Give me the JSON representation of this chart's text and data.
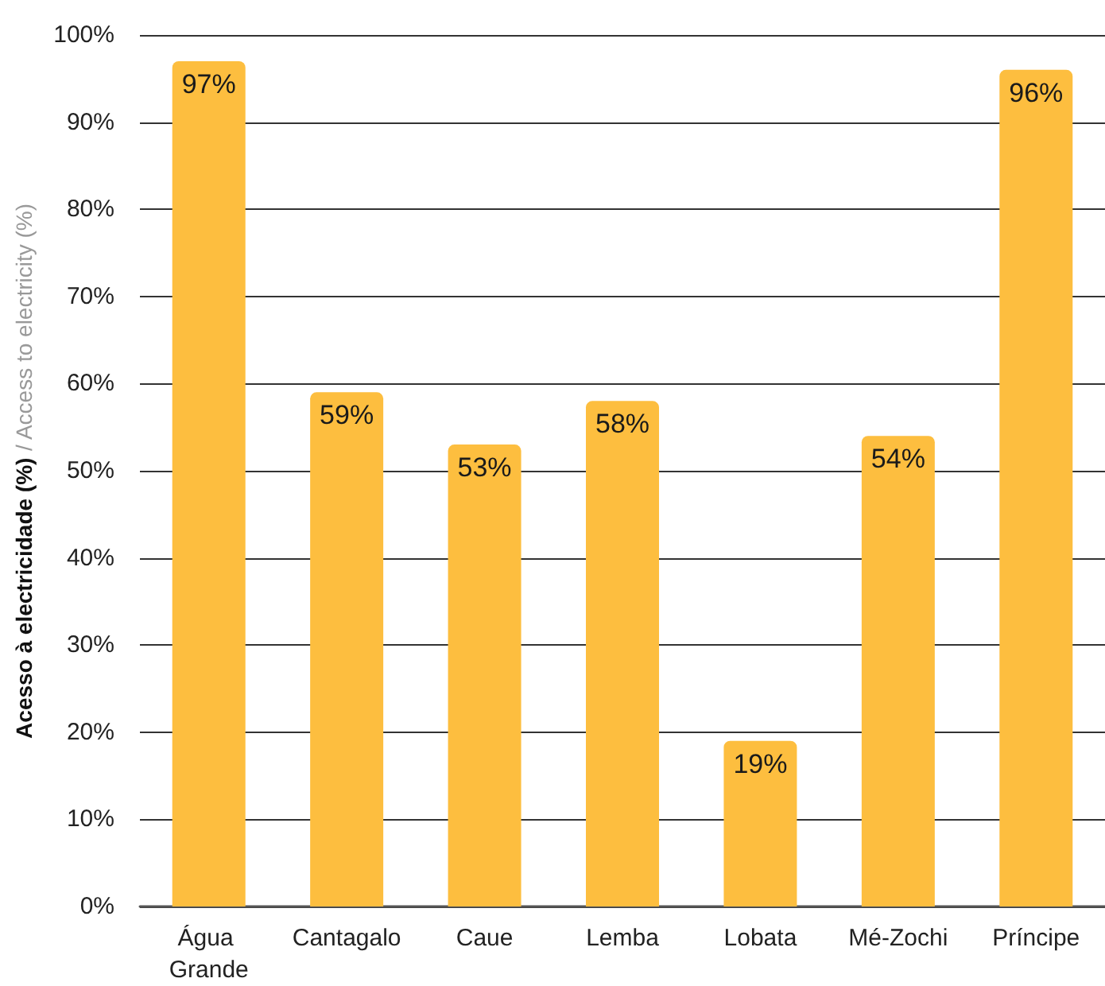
{
  "chart_data": {
    "type": "bar",
    "ylabel": "Acesso à electricidade (%) / Access to electricity (%)",
    "categories": [
      "Água Grande",
      "Cantagalo",
      "Caue",
      "Lemba",
      "Lobata",
      "Mé-Zochi",
      "Príncipe"
    ],
    "values": [
      97,
      59,
      53,
      58,
      19,
      54,
      96
    ],
    "value_labels": [
      "97%",
      "59%",
      "53%",
      "58%",
      "19%",
      "54%",
      "96%"
    ],
    "color": "#fdbe3f",
    "ylim": [
      0,
      100
    ],
    "yticks": [
      {
        "value": 0,
        "label": "0%"
      },
      {
        "value": 10,
        "label": "10%"
      },
      {
        "value": 20,
        "label": "20%"
      },
      {
        "value": 30,
        "label": "30%"
      },
      {
        "value": 40,
        "label": "40%"
      },
      {
        "value": 50,
        "label": "50%"
      },
      {
        "value": 60,
        "label": "60%"
      },
      {
        "value": 70,
        "label": "70%"
      },
      {
        "value": 80,
        "label": "80%"
      },
      {
        "value": 90,
        "label": "90%"
      },
      {
        "value": 100,
        "label": "100%"
      }
    ],
    "grid": "y"
  }
}
